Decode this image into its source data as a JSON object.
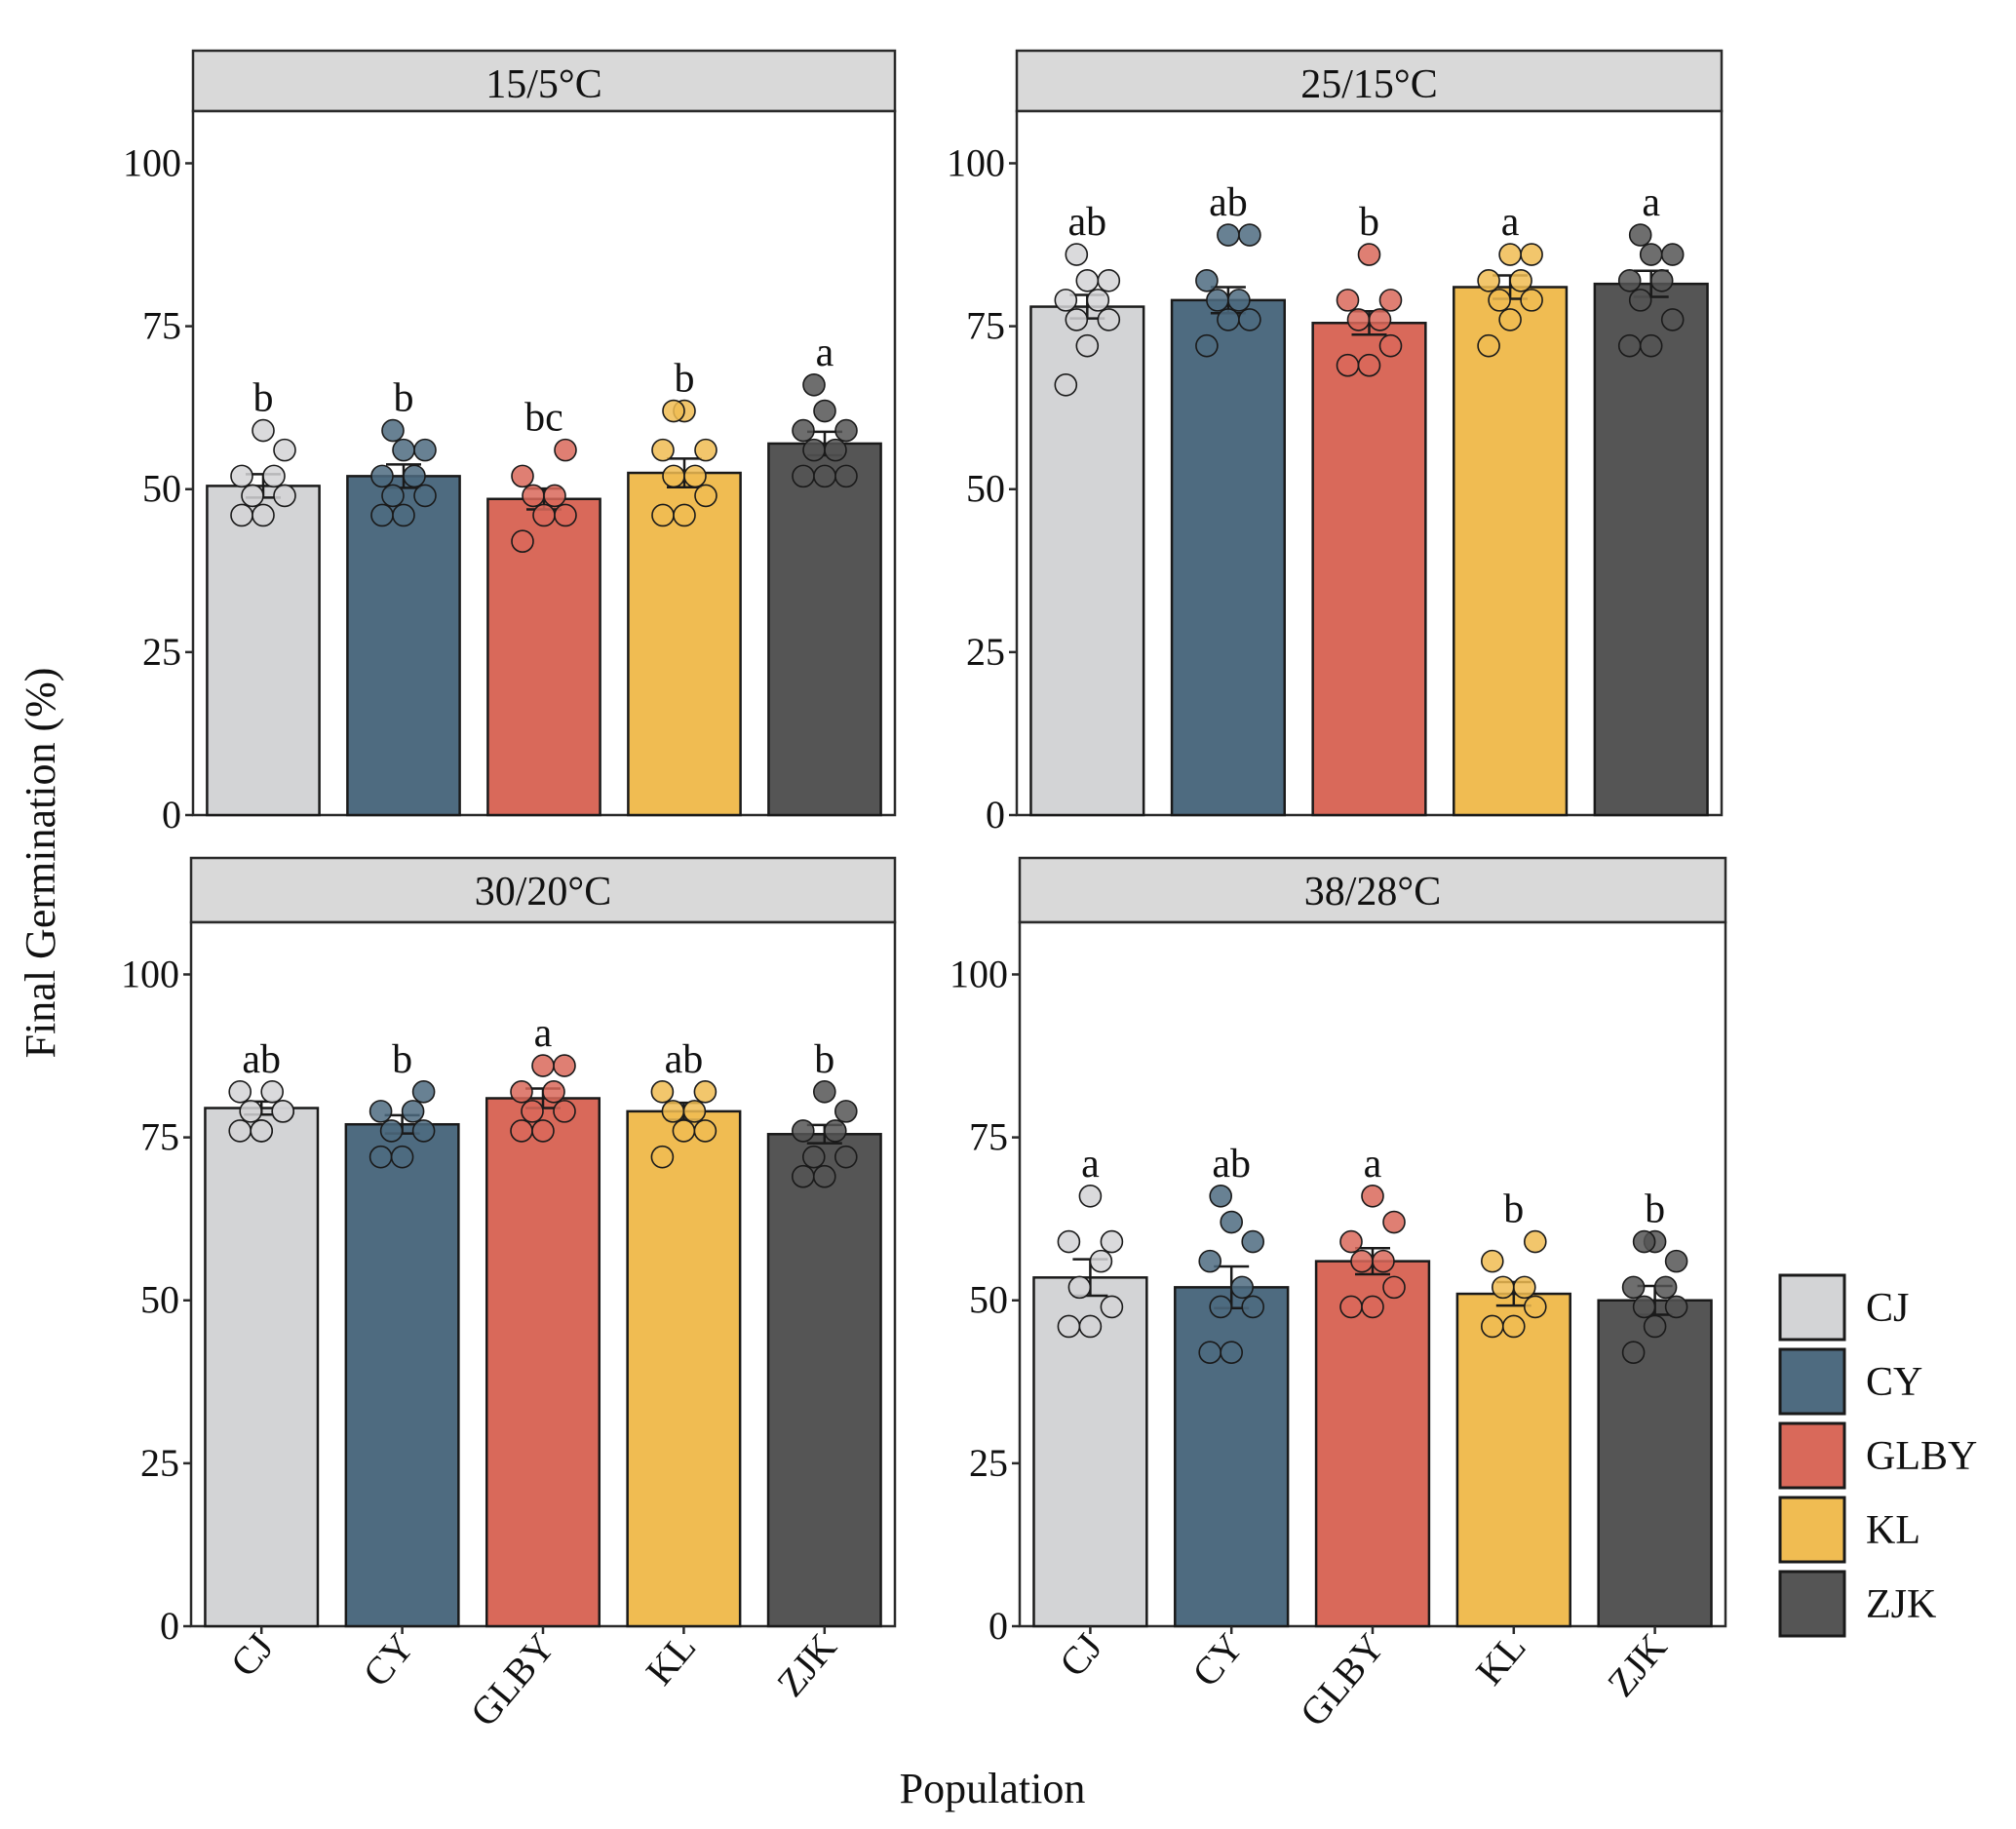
{
  "figure": {
    "xlabel": "Population",
    "ylabel": "Final Germination  (%)"
  },
  "legend": {
    "position": "right",
    "items": [
      "CJ",
      "CY",
      "GLBY",
      "KL",
      "ZJK"
    ]
  },
  "colors": {
    "CJ": "#d3d4d6",
    "CY": "#4e6b80",
    "GLBY": "#d9695a",
    "KL": "#f0bc52",
    "ZJK": "#555555"
  },
  "chart_data": [
    {
      "type": "bar",
      "title": "15/5°C",
      "categories": [
        "CJ",
        "CY",
        "GLBY",
        "KL",
        "ZJK"
      ],
      "values": [
        50.5,
        52.0,
        48.5,
        52.5,
        57.0
      ],
      "error": [
        1.8,
        1.8,
        1.6,
        2.2,
        1.8
      ],
      "letters": [
        "b",
        "b",
        "bc",
        "b",
        "a"
      ],
      "points": [
        [
          46,
          46,
          49,
          49,
          52,
          52,
          56,
          59
        ],
        [
          46,
          46,
          49,
          49,
          52,
          52,
          56,
          56,
          59
        ],
        [
          42,
          46,
          46,
          49,
          49,
          52,
          56
        ],
        [
          46,
          46,
          49,
          52,
          52,
          56,
          56,
          62,
          62
        ],
        [
          52,
          52,
          52,
          56,
          56,
          59,
          59,
          62,
          66
        ]
      ],
      "ylim": [
        0,
        108
      ],
      "yticks": [
        0,
        25,
        50,
        75,
        100
      ]
    },
    {
      "type": "bar",
      "title": "25/15°C",
      "categories": [
        "CJ",
        "CY",
        "GLBY",
        "KL",
        "ZJK"
      ],
      "values": [
        78.0,
        79.0,
        75.5,
        81.0,
        81.5
      ],
      "error": [
        1.8,
        2.0,
        1.8,
        1.8,
        2.0
      ],
      "letters": [
        "ab",
        "ab",
        "b",
        "a",
        "a"
      ],
      "points": [
        [
          66,
          72,
          76,
          76,
          79,
          79,
          82,
          82,
          86
        ],
        [
          72,
          76,
          76,
          79,
          79,
          82,
          89,
          89
        ],
        [
          69,
          69,
          72,
          76,
          76,
          79,
          79,
          86
        ],
        [
          72,
          76,
          79,
          79,
          82,
          82,
          86,
          86
        ],
        [
          72,
          72,
          76,
          79,
          82,
          82,
          86,
          86,
          89
        ]
      ],
      "ylim": [
        0,
        108
      ],
      "yticks": [
        0,
        25,
        50,
        75,
        100
      ]
    },
    {
      "type": "bar",
      "title": "30/20°C",
      "categories": [
        "CJ",
        "CY",
        "GLBY",
        "KL",
        "ZJK"
      ],
      "values": [
        79.5,
        77.0,
        81.0,
        79.0,
        75.5
      ],
      "error": [
        1.0,
        1.4,
        1.5,
        1.3,
        1.4
      ],
      "letters": [
        "ab",
        "b",
        "a",
        "ab",
        "b"
      ],
      "points": [
        [
          76,
          76,
          79,
          79,
          82,
          82,
          79,
          76
        ],
        [
          72,
          72,
          76,
          76,
          79,
          79,
          82
        ],
        [
          76,
          76,
          79,
          79,
          82,
          82,
          86,
          86
        ],
        [
          72,
          76,
          76,
          79,
          79,
          82,
          82
        ],
        [
          69,
          69,
          72,
          72,
          76,
          76,
          79,
          82
        ]
      ],
      "ylim": [
        0,
        108
      ],
      "yticks": [
        0,
        25,
        50,
        75,
        100
      ]
    },
    {
      "type": "bar",
      "title": "38/28°C",
      "categories": [
        "CJ",
        "CY",
        "GLBY",
        "KL",
        "ZJK"
      ],
      "values": [
        53.5,
        52.0,
        56.0,
        51.0,
        50.0
      ],
      "error": [
        2.8,
        3.2,
        2.0,
        1.8,
        2.2
      ],
      "letters": [
        "a",
        "ab",
        "a",
        "b",
        "b"
      ],
      "points": [
        [
          46,
          46,
          49,
          52,
          56,
          59,
          59,
          66
        ],
        [
          42,
          42,
          49,
          49,
          52,
          56,
          59,
          62,
          66
        ],
        [
          49,
          49,
          52,
          56,
          56,
          59,
          62,
          66
        ],
        [
          46,
          46,
          49,
          52,
          52,
          56,
          59
        ],
        [
          42,
          46,
          49,
          49,
          52,
          52,
          56,
          59,
          59
        ]
      ],
      "ylim": [
        0,
        108
      ],
      "yticks": [
        0,
        25,
        50,
        75,
        100
      ]
    }
  ]
}
